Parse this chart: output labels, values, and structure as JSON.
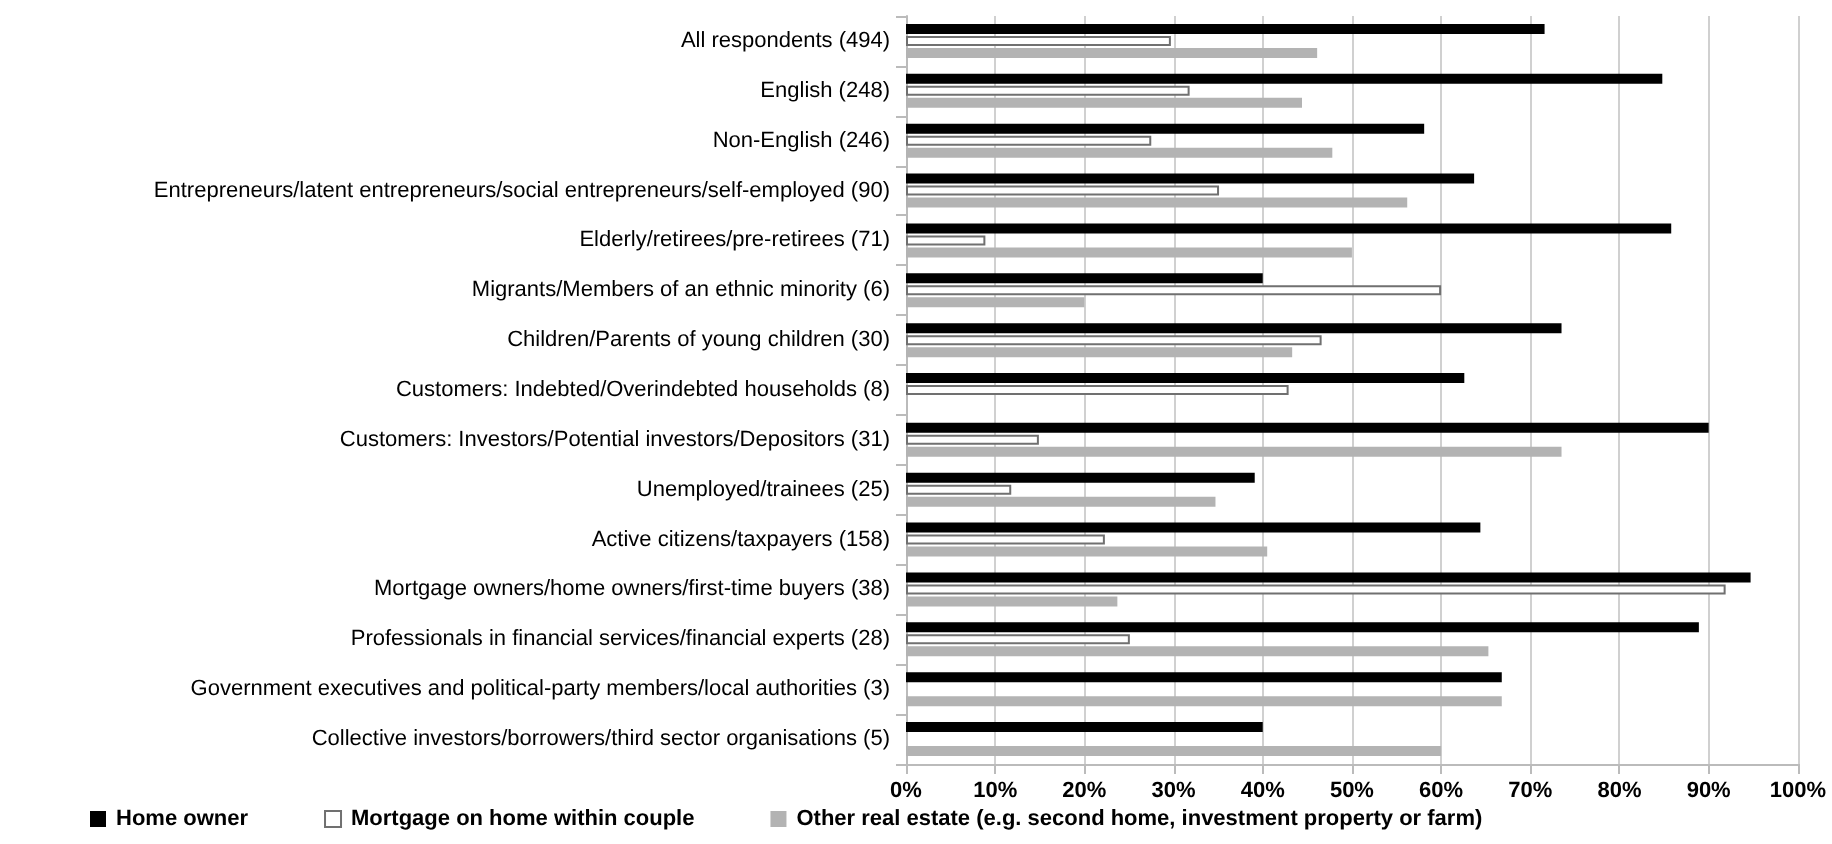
{
  "chart_data": {
    "type": "bar",
    "orientation": "horizontal",
    "categories": [
      "All respondents (494)",
      "English (248)",
      "Non-English (246)",
      "Entrepreneurs/latent entrepreneurs/social entrepreneurs/self-employed (90)",
      "Elderly/retirees/pre-retirees (71)",
      "Migrants/Members of an ethnic minority (6)",
      "Children/Parents of young children (30)",
      "Customers: Indebted/Overindebted households (8)",
      "Customers: Investors/Potential investors/Depositors (31)",
      "Unemployed/trainees (25)",
      "Active citizens/taxpayers (158)",
      "Mortgage owners/home owners/first-time buyers (38)",
      "Professionals in financial services/financial experts (28)",
      "Government executives and political-party members/local authorities (3)",
      "Collective investors/borrowers/third sector organisations (5)"
    ],
    "series": [
      {
        "name": "Home owner",
        "color": "#000000",
        "values": [
          71.6,
          84.8,
          58.1,
          63.7,
          85.8,
          40,
          73.5,
          62.6,
          90,
          39.1,
          64.4,
          94.7,
          88.9,
          66.8,
          40
        ]
      },
      {
        "name": "Mortgage on home within couple",
        "color": "#ffffff",
        "values": [
          29.7,
          31.8,
          27.5,
          35.1,
          8.9,
          60,
          46.6,
          42.9,
          14.9,
          11.8,
          22.3,
          91.9,
          25.1,
          null,
          null
        ]
      },
      {
        "name": "Other real estate (e.g. second home, investment property or farm)",
        "color": "#b3b3b3",
        "values": [
          46.1,
          44.4,
          47.8,
          56.2,
          50,
          20,
          43.3,
          null,
          73.5,
          34.7,
          40.5,
          23.7,
          65.3,
          66.8,
          60
        ]
      }
    ],
    "xlim": [
      0,
      100
    ],
    "xticks": [
      {
        "value": 0,
        "label": "0%"
      },
      {
        "value": 10,
        "label": "10%"
      },
      {
        "value": 20,
        "label": "20%"
      },
      {
        "value": 30,
        "label": "30%"
      },
      {
        "value": 40,
        "label": "40%"
      },
      {
        "value": 50,
        "label": "50%"
      },
      {
        "value": 60,
        "label": "60%"
      },
      {
        "value": 70,
        "label": "70%"
      },
      {
        "value": 80,
        "label": "80%"
      },
      {
        "value": 90,
        "label": "90%"
      },
      {
        "value": 100,
        "label": "100%"
      }
    ],
    "grid": "x",
    "legend": "bottom left"
  }
}
